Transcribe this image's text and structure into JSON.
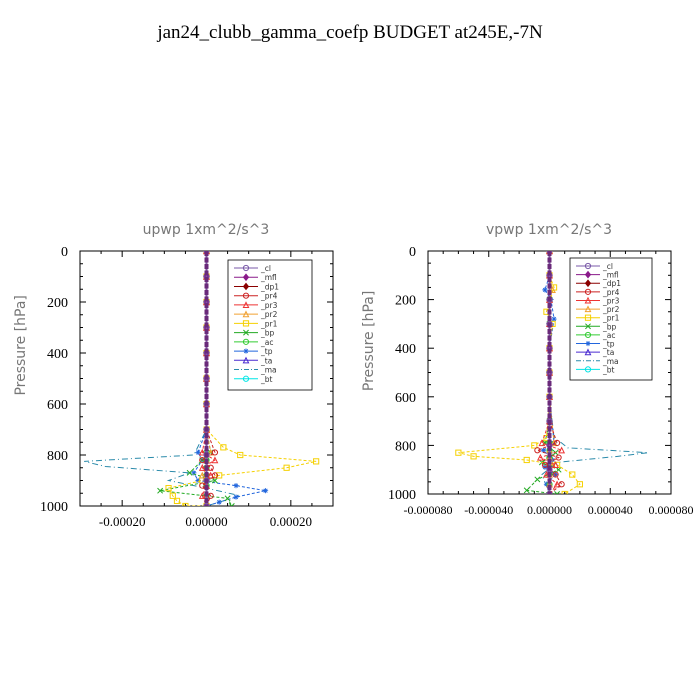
{
  "page": {
    "title": "jan24_clubb_gamma_coefp  BUDGET at245E,-7N"
  },
  "chart_data": [
    {
      "type": "line",
      "title": "upwp   1xm^2/s^3",
      "ylabel": "Pressure [hPa]",
      "xlabel": "",
      "ylim": [
        1000,
        0
      ],
      "xlim": [
        -0.0003,
        0.0003
      ],
      "y_ticks": [
        0,
        200,
        400,
        600,
        800,
        1000
      ],
      "y_tick_labels": [
        "0",
        "200",
        "400",
        "600",
        "800",
        "1000"
      ],
      "x_ticks": [
        -0.0002,
        0,
        0.0002
      ],
      "x_tick_labels": [
        "-0.00020",
        "0.00000",
        "0.00020"
      ],
      "legend_position": "top-right",
      "series": [
        {
          "name": "_cl",
          "color": "#7a5aa8",
          "marker": "circle",
          "x": [
            0,
            0,
            0,
            0,
            0,
            0,
            0,
            0,
            0,
            0,
            0
          ],
          "y": [
            0,
            100,
            200,
            300,
            400,
            500,
            600,
            700,
            800,
            900,
            1000
          ]
        },
        {
          "name": "_mfl",
          "color": "#8a1a8a",
          "marker": "diamond",
          "x": [
            0,
            0,
            0,
            0,
            0,
            0,
            0,
            0,
            0,
            0,
            0
          ],
          "y": [
            0,
            100,
            200,
            300,
            400,
            500,
            600,
            700,
            800,
            900,
            1000
          ]
        },
        {
          "name": "_dp1",
          "color": "#8b0000",
          "marker": "diamond",
          "x": [
            0,
            0,
            0,
            0,
            0,
            0,
            0,
            0,
            0,
            0,
            0
          ],
          "y": [
            0,
            100,
            200,
            300,
            400,
            500,
            600,
            700,
            800,
            900,
            1000
          ]
        },
        {
          "name": "_pr4",
          "color": "#cc2222",
          "marker": "circle",
          "x": [
            0,
            0,
            0,
            0,
            0,
            0,
            0,
            0,
            2e-05,
            -1e-05,
            1e-05,
            2e-05,
            -1e-05,
            1e-05,
            0
          ],
          "y": [
            0,
            100,
            200,
            300,
            400,
            500,
            600,
            700,
            790,
            820,
            850,
            880,
            920,
            960,
            1000
          ]
        },
        {
          "name": "_pr3",
          "color": "#ee3333",
          "marker": "triangle",
          "x": [
            0,
            0,
            0,
            0,
            0,
            0,
            0,
            0,
            -1e-05,
            2e-05,
            -1e-05,
            1e-05,
            0,
            -1e-05,
            0
          ],
          "y": [
            0,
            100,
            200,
            300,
            400,
            500,
            600,
            700,
            790,
            820,
            850,
            880,
            920,
            960,
            1000
          ]
        },
        {
          "name": "_pr2",
          "color": "#f0a030",
          "marker": "triangle",
          "x": [
            0,
            0,
            0,
            0,
            0,
            0,
            0,
            0,
            1e-05,
            0,
            0,
            -1e-05,
            0,
            0,
            0
          ],
          "y": [
            0,
            100,
            200,
            300,
            400,
            500,
            600,
            700,
            790,
            820,
            850,
            880,
            920,
            960,
            1000
          ]
        },
        {
          "name": "_pr1",
          "color": "#f5d000",
          "marker": "square",
          "x": [
            0,
            0,
            0,
            0,
            0,
            0,
            0,
            3e-07,
            4e-05,
            8e-05,
            0.00026,
            0.00019,
            3e-05,
            -1e-05,
            -9e-05,
            -8e-05,
            -7e-05,
            -5e-05,
            0
          ],
          "y": [
            0,
            100,
            200,
            300,
            400,
            500,
            600,
            700,
            770,
            800,
            825,
            850,
            880,
            900,
            930,
            960,
            980,
            1000,
            1000
          ]
        },
        {
          "name": "_bp",
          "color": "#22aa22",
          "marker": "x",
          "x": [
            0,
            0,
            0,
            0,
            0,
            0,
            0,
            0,
            1e-05,
            -1e-05,
            -4e-05,
            2e-05,
            -0.00011,
            5e-05,
            6e-05
          ],
          "y": [
            0,
            100,
            200,
            300,
            400,
            500,
            600,
            700,
            790,
            820,
            870,
            900,
            940,
            970,
            1000
          ]
        },
        {
          "name": "_ac",
          "color": "#33cc33",
          "marker": "circle",
          "x": [
            0,
            0,
            0,
            0,
            0,
            0,
            0,
            0,
            0,
            0,
            0,
            0,
            0,
            0,
            0
          ],
          "y": [
            0,
            100,
            200,
            300,
            400,
            500,
            600,
            700,
            790,
            820,
            850,
            880,
            920,
            960,
            1000
          ]
        },
        {
          "name": "_tp",
          "color": "#2266dd",
          "marker": "star",
          "x": [
            0,
            0,
            0,
            0,
            0,
            0,
            0,
            0,
            -2e-05,
            -1e-05,
            -3e-05,
            -2e-05,
            7e-05,
            0.00014,
            7e-05,
            3e-05,
            0
          ],
          "y": [
            0,
            100,
            200,
            300,
            400,
            500,
            600,
            700,
            790,
            820,
            870,
            900,
            920,
            940,
            965,
            985,
            1000
          ]
        },
        {
          "name": "_ta",
          "color": "#4a2ad0",
          "marker": "triangle",
          "x": [
            0,
            0,
            0,
            0,
            0,
            0,
            0,
            0,
            0,
            0,
            0,
            0,
            0,
            0,
            0
          ],
          "y": [
            0,
            100,
            200,
            300,
            400,
            500,
            600,
            700,
            790,
            820,
            850,
            880,
            920,
            960,
            1000
          ]
        },
        {
          "name": "_ma",
          "color": "#2a8aaa",
          "marker": "none",
          "x": [
            0,
            0,
            0,
            0,
            0,
            0,
            0,
            0,
            -3e-05,
            -0.00029,
            -0.00024,
            -4e-05,
            -9e-05,
            0,
            8e-05,
            0
          ],
          "y": [
            0,
            100,
            200,
            300,
            400,
            500,
            600,
            700,
            800,
            825,
            845,
            870,
            900,
            930,
            960,
            1000
          ]
        },
        {
          "name": "_bt",
          "color": "#00e5e5",
          "marker": "circle",
          "x": [
            0,
            0,
            0,
            0,
            0,
            0,
            0,
            0,
            0,
            0,
            0,
            0,
            0,
            0,
            0
          ],
          "y": [
            0,
            100,
            200,
            300,
            400,
            500,
            600,
            700,
            790,
            820,
            850,
            880,
            920,
            960,
            1000
          ]
        }
      ]
    },
    {
      "type": "line",
      "title": "vpwp   1xm^2/s^3",
      "ylabel": "Pressure [hPa]",
      "xlabel": "",
      "ylim": [
        1000,
        0
      ],
      "xlim": [
        -8e-05,
        8e-05
      ],
      "y_ticks": [
        0,
        200,
        400,
        600,
        800,
        1000
      ],
      "y_tick_labels": [
        "0",
        "200",
        "400",
        "600",
        "800",
        "1000"
      ],
      "x_ticks": [
        -8e-05,
        -4e-05,
        0,
        4e-05,
        8e-05
      ],
      "x_tick_labels": [
        "-0.000080",
        "-0.000040",
        "0.000000",
        "0.000040",
        "0.000080"
      ],
      "legend_position": "top-right",
      "series": [
        {
          "name": "_cl",
          "color": "#7a5aa8",
          "marker": "circle",
          "x": [
            0,
            0,
            0,
            0,
            0,
            0,
            0,
            0,
            0,
            0,
            0
          ],
          "y": [
            0,
            100,
            200,
            300,
            400,
            500,
            600,
            700,
            800,
            900,
            1000
          ]
        },
        {
          "name": "_mfl",
          "color": "#8a1a8a",
          "marker": "diamond",
          "x": [
            0,
            0,
            0,
            0,
            0,
            0,
            0,
            0,
            0,
            0,
            0
          ],
          "y": [
            0,
            100,
            200,
            300,
            400,
            500,
            600,
            700,
            800,
            900,
            1000
          ]
        },
        {
          "name": "_dp1",
          "color": "#8b0000",
          "marker": "diamond",
          "x": [
            0,
            0,
            0,
            0,
            0,
            0,
            0,
            0,
            0,
            0,
            0
          ],
          "y": [
            0,
            100,
            200,
            300,
            400,
            500,
            600,
            700,
            800,
            900,
            1000
          ]
        },
        {
          "name": "_pr4",
          "color": "#cc2222",
          "marker": "circle",
          "x": [
            0,
            0,
            0,
            0,
            0,
            0,
            0,
            0,
            5e-06,
            -8e-06,
            6e-06,
            -3e-06,
            4e-06,
            8e-06,
            0
          ],
          "y": [
            0,
            100,
            200,
            300,
            400,
            500,
            600,
            700,
            790,
            820,
            850,
            880,
            920,
            960,
            1000
          ]
        },
        {
          "name": "_pr3",
          "color": "#ee3333",
          "marker": "triangle",
          "x": [
            0,
            0,
            0,
            0,
            0,
            0,
            0,
            0,
            -5e-06,
            8e-06,
            -6e-06,
            4e-06,
            -2e-06,
            5e-06,
            0
          ],
          "y": [
            0,
            100,
            200,
            300,
            400,
            500,
            600,
            700,
            790,
            820,
            850,
            880,
            920,
            960,
            1000
          ]
        },
        {
          "name": "_pr2",
          "color": "#f0a030",
          "marker": "triangle",
          "x": [
            0,
            0,
            2e-06,
            0,
            0,
            0,
            0,
            0,
            3e-06,
            0,
            0,
            2e-06,
            0,
            0,
            0
          ],
          "y": [
            0,
            100,
            160,
            200,
            300,
            400,
            500,
            600,
            790,
            820,
            850,
            880,
            920,
            960,
            1000
          ]
        },
        {
          "name": "_pr1",
          "color": "#f5d000",
          "marker": "square",
          "x": [
            0,
            0,
            3e-06,
            -2e-06,
            2e-06,
            0,
            0,
            0,
            -2e-06,
            -1e-05,
            -6e-05,
            -5e-05,
            -1.5e-05,
            5e-06,
            1.5e-05,
            2e-05,
            1e-05
          ],
          "y": [
            0,
            100,
            150,
            250,
            300,
            400,
            500,
            600,
            770,
            800,
            830,
            845,
            860,
            880,
            920,
            960,
            1000
          ]
        },
        {
          "name": "_bp",
          "color": "#22aa22",
          "marker": "x",
          "x": [
            0,
            0,
            0,
            0,
            0,
            0,
            0,
            0,
            -3e-06,
            4e-06,
            -5e-06,
            6e-06,
            -8e-06,
            -1.5e-05,
            5e-06
          ],
          "y": [
            0,
            100,
            200,
            300,
            400,
            500,
            600,
            700,
            790,
            830,
            870,
            900,
            940,
            985,
            1000
          ]
        },
        {
          "name": "_ac",
          "color": "#33cc33",
          "marker": "circle",
          "x": [
            0,
            0,
            0,
            0,
            0,
            0,
            0,
            0,
            0,
            0,
            0,
            0,
            0,
            0,
            0
          ],
          "y": [
            0,
            100,
            200,
            300,
            400,
            500,
            600,
            700,
            790,
            820,
            850,
            880,
            920,
            960,
            1000
          ]
        },
        {
          "name": "_tp",
          "color": "#2266dd",
          "marker": "star",
          "x": [
            0,
            0,
            -3e-06,
            1e-06,
            3e-06,
            0,
            0,
            0,
            3e-06,
            -4e-06,
            2e-06,
            -3e-06,
            4e-06,
            -2e-06,
            0
          ],
          "y": [
            0,
            100,
            160,
            200,
            280,
            400,
            500,
            600,
            790,
            820,
            860,
            890,
            920,
            960,
            1000
          ]
        },
        {
          "name": "_ta",
          "color": "#4a2ad0",
          "marker": "triangle",
          "x": [
            0,
            0,
            0,
            0,
            0,
            0,
            0,
            0,
            0,
            0,
            0,
            0,
            0,
            0,
            0
          ],
          "y": [
            0,
            100,
            200,
            300,
            400,
            500,
            600,
            700,
            790,
            820,
            850,
            880,
            920,
            960,
            1000
          ]
        },
        {
          "name": "_ma",
          "color": "#2a8aaa",
          "marker": "none",
          "x": [
            0,
            0,
            0,
            0,
            0,
            0,
            0,
            3e-06,
            8e-06,
            1.2e-05,
            6.5e-05,
            4.5e-05,
            5e-06,
            -5e-06,
            0
          ],
          "y": [
            0,
            100,
            200,
            300,
            400,
            500,
            600,
            770,
            790,
            810,
            830,
            845,
            870,
            920,
            1000
          ]
        },
        {
          "name": "_bt",
          "color": "#00e5e5",
          "marker": "circle",
          "x": [
            0,
            0,
            0,
            0,
            0,
            0,
            0,
            0,
            0,
            0,
            0,
            0,
            0,
            0,
            0
          ],
          "y": [
            0,
            100,
            200,
            300,
            400,
            500,
            600,
            700,
            790,
            820,
            850,
            880,
            920,
            960,
            1000
          ]
        }
      ]
    }
  ]
}
